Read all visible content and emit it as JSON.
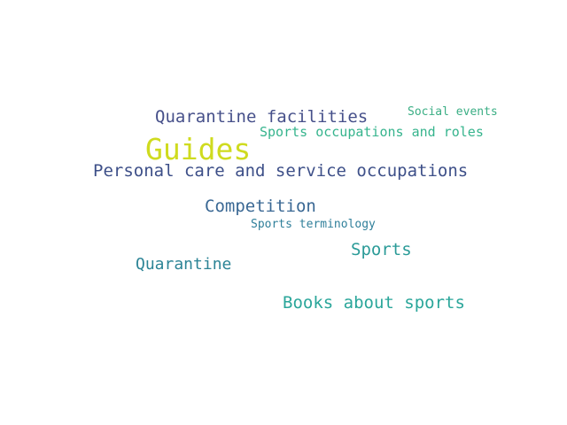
{
  "words": [
    {
      "id": "guides",
      "text": "Guides",
      "color": "#cfdb1f"
    },
    {
      "id": "quarantine-facilities",
      "text": "Quarantine facilities",
      "color": "#46508a"
    },
    {
      "id": "social-events",
      "text": "Social events",
      "color": "#3aae84"
    },
    {
      "id": "sports-occupations",
      "text": "Sports occupations and roles",
      "color": "#36b48d"
    },
    {
      "id": "personal-care",
      "text": "Personal care and service occupations",
      "color": "#3d4f88"
    },
    {
      "id": "competition",
      "text": "Competition",
      "color": "#3a6894"
    },
    {
      "id": "sports-terminology",
      "text": "Sports terminology",
      "color": "#2f7f9a"
    },
    {
      "id": "sports",
      "text": "Sports",
      "color": "#2b9b98"
    },
    {
      "id": "quarantine",
      "text": "Quarantine",
      "color": "#2c8496"
    },
    {
      "id": "books-about-sports",
      "text": "Books about sports",
      "color": "#2aa69a"
    }
  ]
}
